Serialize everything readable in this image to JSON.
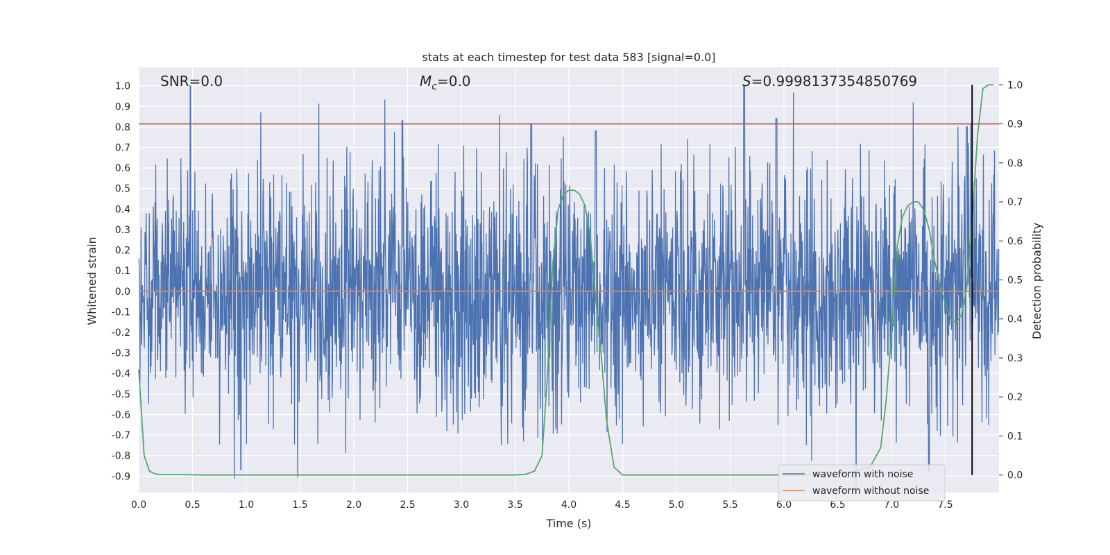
{
  "chart_data": {
    "type": "line",
    "title": "stats at each timestep for test data 583 [signal=0.0]",
    "xlabel": "Time (s)",
    "ylabel_left": "Whitened strain",
    "ylabel_right": "Detection probability",
    "xlim": [
      0.0,
      8.0
    ],
    "ylim_left": [
      -0.98,
      1.09
    ],
    "ylim_right": [
      -0.045,
      1.045
    ],
    "x_ticks": [
      "0.0",
      "0.5",
      "1.0",
      "1.5",
      "2.0",
      "2.5",
      "3.0",
      "3.5",
      "4.0",
      "4.5",
      "5.0",
      "5.5",
      "6.0",
      "6.5",
      "7.0",
      "7.5"
    ],
    "y_ticks_left": [
      "-0.9",
      "-0.8",
      "-0.7",
      "-0.6",
      "-0.5",
      "-0.4",
      "-0.3",
      "-0.2",
      "-0.1",
      "0.0",
      "0.1",
      "0.2",
      "0.3",
      "0.4",
      "0.5",
      "0.6",
      "0.7",
      "0.8",
      "0.9",
      "1.0"
    ],
    "y_ticks_right": [
      "0.0",
      "0.1",
      "0.2",
      "0.3",
      "0.4",
      "0.5",
      "0.6",
      "0.7",
      "0.8",
      "0.9",
      "1.0"
    ],
    "grid": true,
    "annotations": {
      "snr": "SNR=0.0",
      "mc_symbol": "M",
      "mc_sub": "c",
      "mc_value": "=0.0",
      "s_symbol": "S",
      "s_value": "=0.9998137354850769"
    },
    "threshold_line": {
      "y_right_axis": 0.9,
      "color": "#c44e52"
    },
    "marker_line_x": 7.75,
    "series": [
      {
        "name": "waveform with noise",
        "color": "#4c72b0",
        "axis": "left",
        "note": "dense whitened noise trace, 0 to 8 s",
        "envelope_abs": 0.5,
        "peaks": [
          {
            "x": 0.48,
            "y": 1.0
          },
          {
            "x": 0.95,
            "y": -0.87
          },
          {
            "x": 2.45,
            "y": 0.83
          },
          {
            "x": 5.63,
            "y": 1.0
          },
          {
            "x": 5.93,
            "y": 0.84
          },
          {
            "x": 7.35,
            "y": -0.88
          },
          {
            "x": 3.65,
            "y": 0.81
          },
          {
            "x": 4.25,
            "y": 0.78
          },
          {
            "x": 7.7,
            "y": 0.8
          }
        ]
      },
      {
        "name": "waveform without noise",
        "color": "#dd8452",
        "axis": "left",
        "x": [
          0.0,
          8.0
        ],
        "y": [
          0.0,
          0.0
        ]
      },
      {
        "name": "detection probability",
        "color": "#55a868",
        "axis": "right",
        "x": [
          0.0,
          0.05,
          0.1,
          0.15,
          0.2,
          0.25,
          0.4,
          0.6,
          1.0,
          2.0,
          3.0,
          3.5,
          3.6,
          3.68,
          3.75,
          3.8,
          3.85,
          3.9,
          3.95,
          4.0,
          4.05,
          4.1,
          4.15,
          4.2,
          4.25,
          4.3,
          4.35,
          4.42,
          4.5,
          4.6,
          5.0,
          6.0,
          6.5,
          6.8,
          6.9,
          6.95,
          7.0,
          7.05,
          7.1,
          7.15,
          7.2,
          7.25,
          7.3,
          7.35,
          7.4,
          7.45,
          7.5,
          7.55,
          7.6,
          7.65,
          7.7,
          7.75,
          7.8,
          7.85,
          7.9,
          7.95
        ],
        "y": [
          0.27,
          0.05,
          0.01,
          0.003,
          0.001,
          0.001,
          0.001,
          0.0,
          0.0,
          0.0,
          0.0,
          0.0,
          0.002,
          0.01,
          0.05,
          0.25,
          0.54,
          0.68,
          0.72,
          0.73,
          0.73,
          0.72,
          0.69,
          0.61,
          0.45,
          0.31,
          0.14,
          0.02,
          0.0,
          0.0,
          0.0,
          0.0,
          0.0,
          0.02,
          0.07,
          0.19,
          0.36,
          0.58,
          0.66,
          0.69,
          0.7,
          0.7,
          0.68,
          0.63,
          0.55,
          0.49,
          0.44,
          0.4,
          0.39,
          0.41,
          0.48,
          0.65,
          0.87,
          0.99,
          1.0,
          1.0
        ]
      }
    ],
    "legend": {
      "placement": "lower-right",
      "entries": [
        "waveform with noise",
        "waveform without noise"
      ]
    },
    "colors": {
      "axes_bg": "#eaeaf2",
      "grid": "#ffffff",
      "noise": "#4c72b0",
      "clean": "#dd8452",
      "prob": "#55a868",
      "threshold": "#c44e52",
      "marker": "#000000"
    }
  }
}
